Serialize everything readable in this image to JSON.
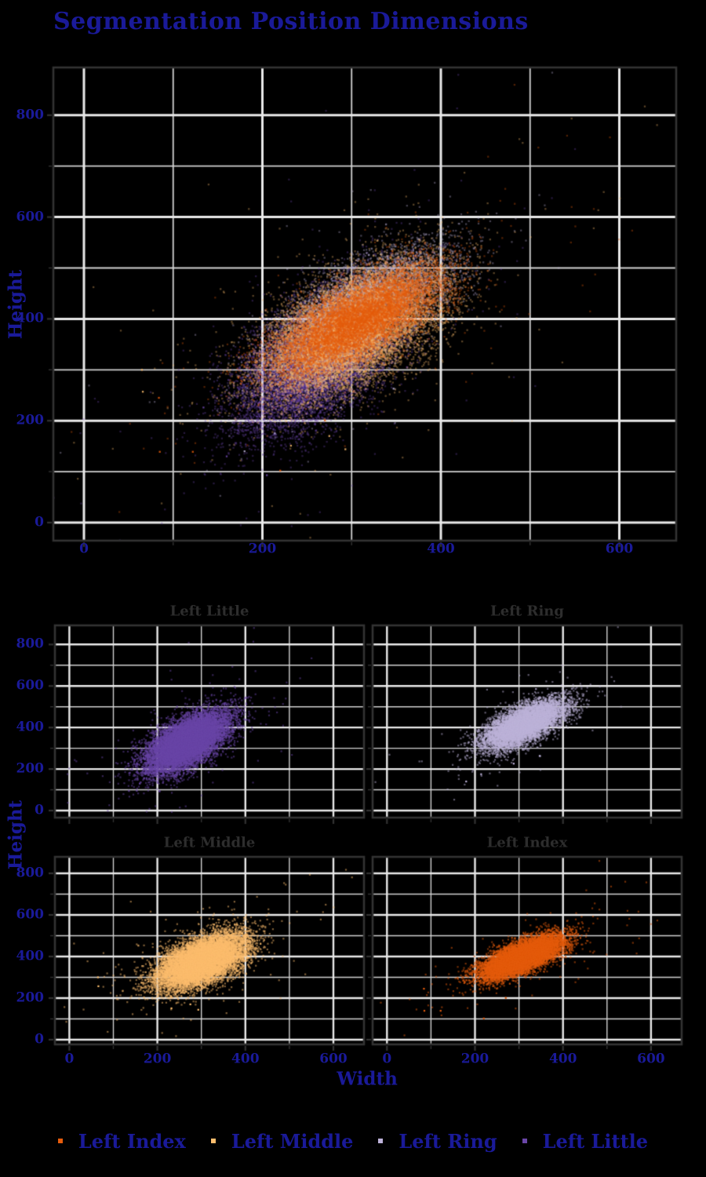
{
  "page": {
    "background": "#000000",
    "text_color": "#1a1a99"
  },
  "title": {
    "text": "Segmentation Position Dimensions",
    "color": "#1a1a99"
  },
  "axes": {
    "x_label": "Width",
    "y_label": "Height",
    "x_ticks": [
      0,
      200,
      400,
      600
    ],
    "y_ticks": [
      0,
      200,
      400,
      600,
      800
    ],
    "tick_label_color": "#1a1a99",
    "axis_label_color": "#1a1a99",
    "grid_major_color": "#e9e9e9",
    "grid_minor_color": "#d2d2d2",
    "frame_color": "#323232",
    "tick_mark_color": "#323232"
  },
  "facets": [
    {
      "title": "Left Little",
      "series": "Left Little"
    },
    {
      "title": "Left Ring",
      "series": "Left Ring"
    },
    {
      "title": "Left Middle",
      "series": "Left Middle"
    },
    {
      "title": "Left Index",
      "series": "Left Index"
    }
  ],
  "facet_title_color": "#2d2d2d",
  "legend": {
    "items": [
      {
        "label": "Left Index",
        "color": "#e65c0c"
      },
      {
        "label": "Left Middle",
        "color": "#fdbe6e"
      },
      {
        "label": "Left Ring",
        "color": "#beb3da"
      },
      {
        "label": "Left Little",
        "color": "#6a46a8"
      }
    ],
    "label_color": "#1a1a99"
  },
  "chart_data": {
    "type": "scatter",
    "title": "Segmentation Position Dimensions",
    "xlabel": "Width",
    "ylabel": "Height",
    "xlim": [
      -35,
      665
    ],
    "ylim": [
      -55,
      895
    ],
    "x_ticks": [
      0,
      200,
      400,
      600
    ],
    "y_ticks": [
      0,
      200,
      400,
      600,
      800
    ],
    "grid": true,
    "grid_minor_step": 100,
    "grid_major_step": 200,
    "legend_position": "bottom",
    "layout": "overview plot on top, 2x2 facet grid below (Left Little, Left Ring / Left Middle, Left Index)",
    "series": [
      {
        "name": "Left Little",
        "color": "#6a46a8",
        "n": 12000,
        "mean": [
          268,
          330
        ],
        "std": [
          46,
          72
        ],
        "corr": 0.62,
        "outliers": [
          [
            134,
            226
          ],
          [
            205,
            93
          ],
          [
            160,
            130
          ]
        ]
      },
      {
        "name": "Left Ring",
        "color": "#beb3da",
        "n": 8000,
        "mean": [
          312,
          415
        ],
        "std": [
          46,
          58
        ],
        "corr": 0.66,
        "outliers": [
          [
            214,
            175
          ],
          [
            288,
            226
          ],
          [
            347,
            263
          ],
          [
            180,
            140
          ]
        ]
      },
      {
        "name": "Left Middle",
        "color": "#fdbe6e",
        "n": 12000,
        "mean": [
          302,
          378
        ],
        "std": [
          50,
          65
        ],
        "corr": 0.55,
        "outliers": [
          [
            65,
            300
          ],
          [
            232,
            151
          ],
          [
            275,
            170
          ],
          [
            293,
            144
          ],
          [
            66,
            257
          ]
        ]
      },
      {
        "name": "Left Index",
        "color": "#e65c0c",
        "n": 10000,
        "mean": [
          308,
          398
        ],
        "std": [
          47,
          52
        ],
        "corr": 0.72,
        "outliers": [
          [
            84,
            245
          ],
          [
            85,
            139
          ],
          [
            122,
            139
          ],
          [
            220,
            102
          ],
          [
            270,
            201
          ]
        ]
      }
    ]
  }
}
